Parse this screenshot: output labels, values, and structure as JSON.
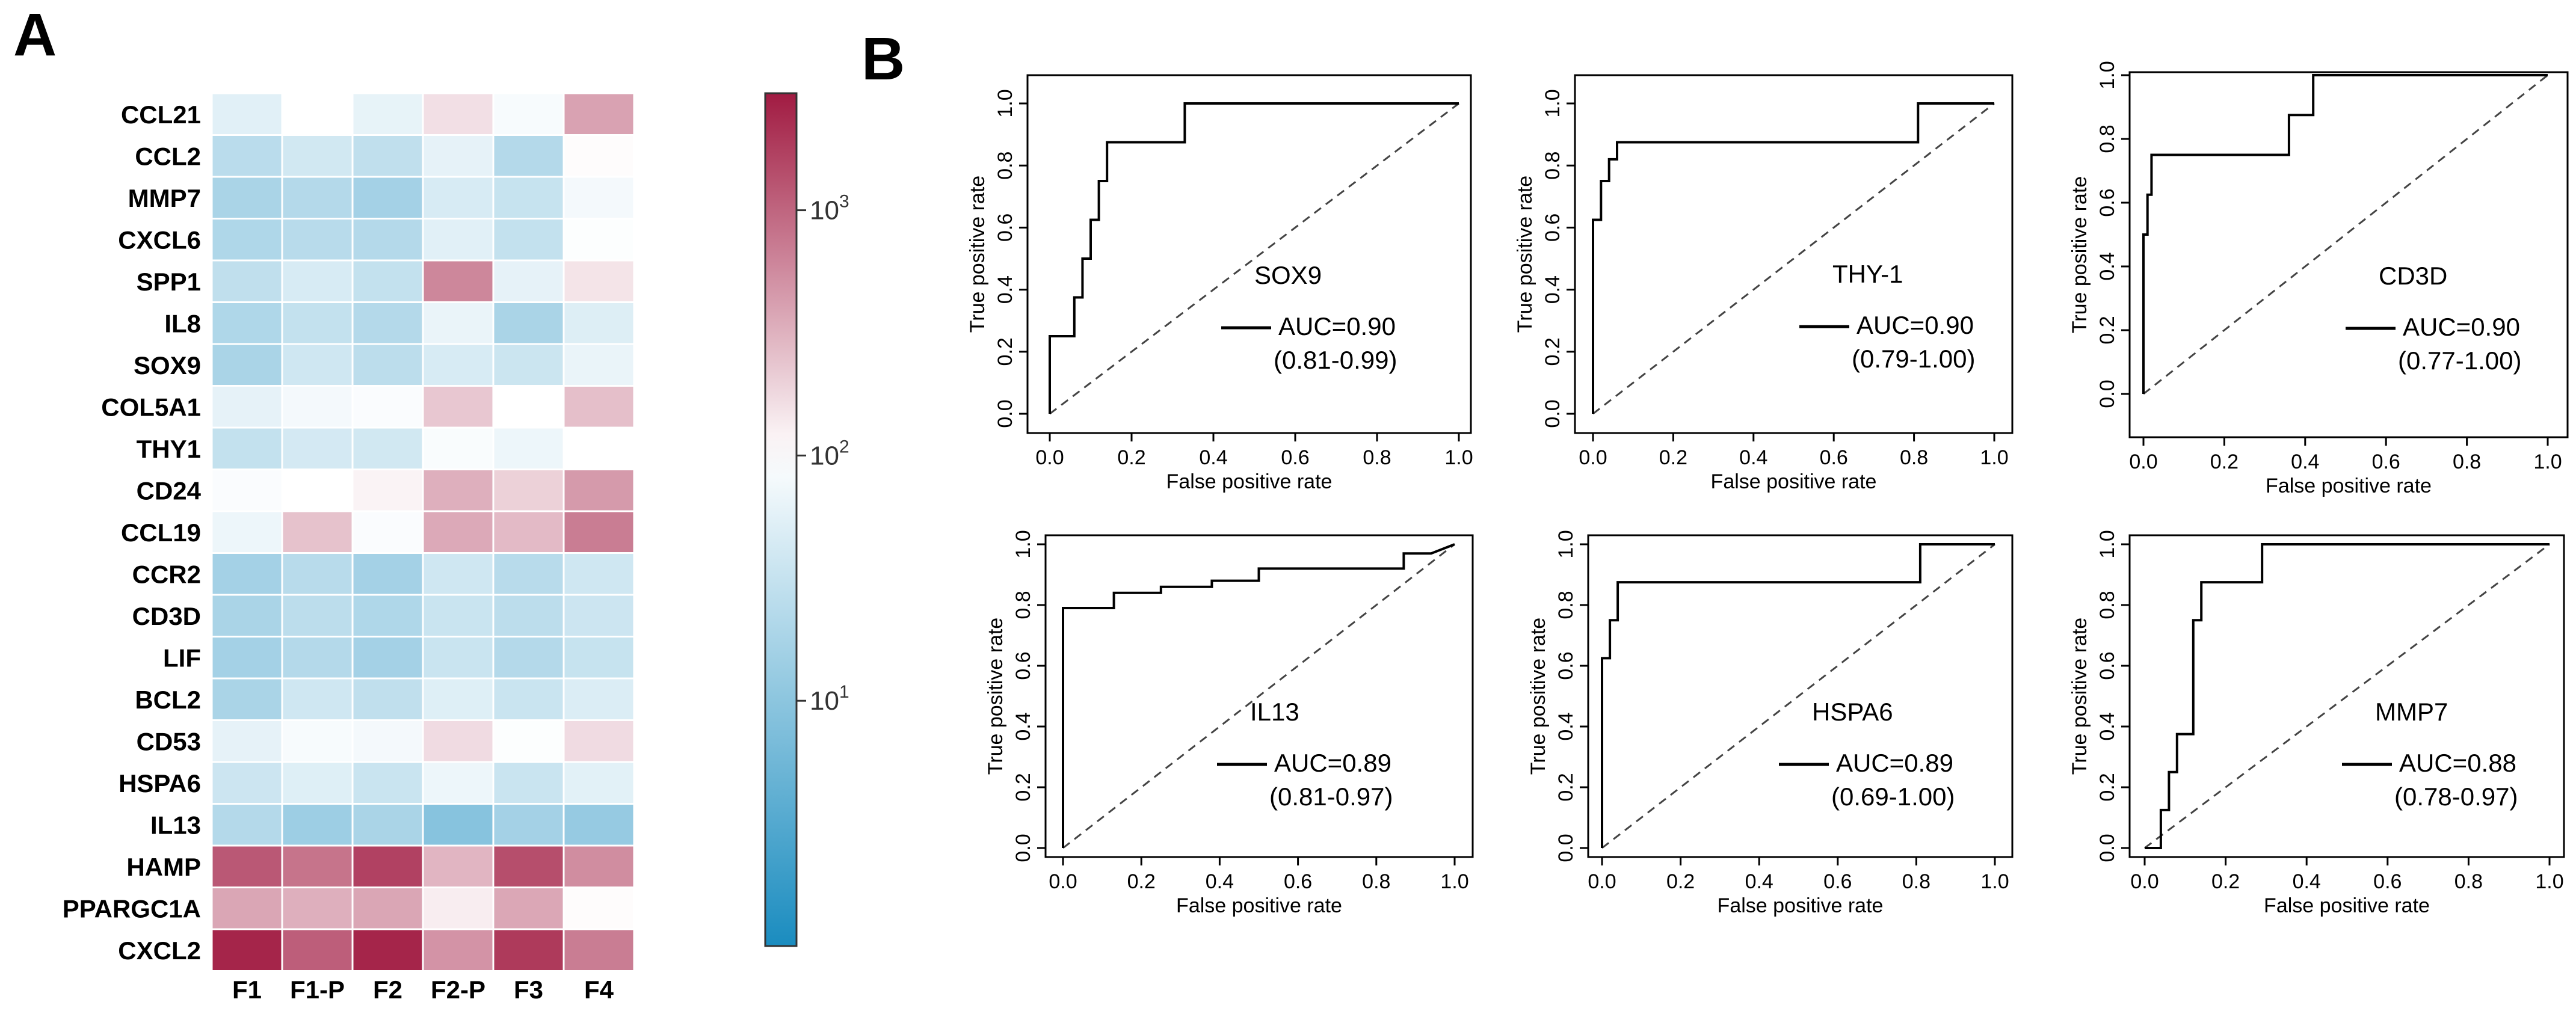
{
  "panels": {
    "a_label": "A",
    "b_label": "B"
  },
  "chart_data": [
    {
      "type": "heatmap",
      "rows": [
        "CCL21",
        "CCL2",
        "MMP7",
        "CXCL6",
        "SPP1",
        "IL8",
        "SOX9",
        "COL5A1",
        "THY1",
        "CD24",
        "CCL19",
        "CCR2",
        "CD3D",
        "LIF",
        "BCL2",
        "CD53",
        "HSPA6",
        "IL13",
        "HAMP",
        "PPARGC1A",
        "CXCL2"
      ],
      "columns": [
        "F1",
        "F1-P",
        "F2",
        "F2-P",
        "F3",
        "F4"
      ],
      "values": [
        [
          55,
          100,
          62,
          160,
          85,
          400
        ],
        [
          25,
          40,
          28,
          60,
          22,
          105
        ],
        [
          18,
          22,
          16,
          45,
          32,
          80
        ],
        [
          20,
          24,
          22,
          55,
          30,
          95
        ],
        [
          28,
          45,
          30,
          600,
          60,
          150
        ],
        [
          20,
          30,
          22,
          65,
          18,
          50
        ],
        [
          18,
          38,
          26,
          45,
          35,
          65
        ],
        [
          60,
          80,
          90,
          230,
          100,
          260
        ],
        [
          30,
          42,
          40,
          88,
          70,
          100
        ],
        [
          90,
          100,
          120,
          330,
          200,
          450
        ],
        [
          70,
          250,
          90,
          360,
          280,
          700
        ],
        [
          16,
          24,
          16,
          38,
          24,
          38
        ],
        [
          18,
          26,
          20,
          34,
          26,
          36
        ],
        [
          16,
          22,
          16,
          34,
          22,
          32
        ],
        [
          18,
          38,
          28,
          52,
          34,
          48
        ],
        [
          60,
          85,
          80,
          170,
          95,
          170
        ],
        [
          36,
          52,
          34,
          70,
          34,
          56
        ],
        [
          22,
          14,
          18,
          9,
          16,
          12
        ],
        [
          1200,
          800,
          1700,
          300,
          1400,
          550
        ],
        [
          380,
          330,
          380,
          130,
          370,
          105
        ],
        [
          2600,
          1100,
          2600,
          500,
          1900,
          700
        ]
      ],
      "scale": "log",
      "colorbar": {
        "min": 1,
        "max": 3000,
        "ticks": [
          {
            "value": 10,
            "label": "10",
            "exp": "1"
          },
          {
            "value": 100,
            "label": "10",
            "exp": "2"
          },
          {
            "value": 1000,
            "label": "10",
            "exp": "3"
          }
        ],
        "colors": {
          "low": "#1a8cbf",
          "mid": "#ffffff",
          "high": "#a11b42"
        }
      }
    },
    {
      "type": "line",
      "title": "SOX9",
      "auc": "AUC=0.90",
      "ci": "(0.81-0.99)",
      "xlabel": "False positive rate",
      "ylabel": "True positive rate",
      "xlim": [
        0,
        1
      ],
      "ylim": [
        0,
        1
      ],
      "ticks": [
        "0.0",
        "0.2",
        "0.4",
        "0.6",
        "0.8",
        "1.0"
      ],
      "fpr": [
        0,
        0,
        0.06,
        0.06,
        0.08,
        0.08,
        0.1,
        0.1,
        0.12,
        0.12,
        0.14,
        0.14,
        0.33,
        0.33,
        1.0
      ],
      "tpr": [
        0,
        0.25,
        0.25,
        0.375,
        0.375,
        0.5,
        0.5,
        0.625,
        0.625,
        0.75,
        0.75,
        0.875,
        0.875,
        1.0,
        1.0
      ]
    },
    {
      "type": "line",
      "title": "THY-1",
      "auc": "AUC=0.90",
      "ci": "(0.79-1.00)",
      "xlabel": "False positive rate",
      "ylabel": "True positive rate",
      "xlim": [
        0,
        1
      ],
      "ylim": [
        0,
        1
      ],
      "ticks": [
        "0.0",
        "0.2",
        "0.4",
        "0.6",
        "0.8",
        "1.0"
      ],
      "fpr": [
        0,
        0,
        0.02,
        0.02,
        0.04,
        0.04,
        0.06,
        0.06,
        0.81,
        0.81,
        1.0
      ],
      "tpr": [
        0,
        0.625,
        0.625,
        0.75,
        0.75,
        0.82,
        0.82,
        0.875,
        0.875,
        1.0,
        1.0
      ]
    },
    {
      "type": "line",
      "title": "CD3D",
      "auc": "AUC=0.90",
      "ci": "(0.77-1.00)",
      "xlabel": "False positive rate",
      "ylabel": "True positive rate",
      "xlim": [
        0,
        1
      ],
      "ylim": [
        0,
        1
      ],
      "ticks": [
        "0.0",
        "0.2",
        "0.4",
        "0.6",
        "0.8",
        "1.0"
      ],
      "fpr": [
        0,
        0,
        0.01,
        0.01,
        0.02,
        0.02,
        0.36,
        0.36,
        0.42,
        0.42,
        1.0
      ],
      "tpr": [
        0,
        0.5,
        0.5,
        0.625,
        0.625,
        0.75,
        0.75,
        0.875,
        0.875,
        1.0,
        1.0
      ]
    },
    {
      "type": "line",
      "title": "IL13",
      "auc": "AUC=0.89",
      "ci": "(0.81-0.97)",
      "xlabel": "False positive rate",
      "ylabel": "True positive rate",
      "xlim": [
        0,
        1
      ],
      "ylim": [
        0,
        1
      ],
      "ticks": [
        "0.0",
        "0.2",
        "0.4",
        "0.6",
        "0.8",
        "1.0"
      ],
      "fpr": [
        0,
        0,
        0.13,
        0.13,
        0.25,
        0.25,
        0.38,
        0.38,
        0.5,
        0.5,
        0.87,
        0.87,
        0.94,
        1.0
      ],
      "tpr": [
        0,
        0.79,
        0.79,
        0.84,
        0.84,
        0.86,
        0.86,
        0.88,
        0.88,
        0.92,
        0.92,
        0.97,
        0.97,
        1.0
      ]
    },
    {
      "type": "line",
      "title": "HSPA6",
      "auc": "AUC=0.89",
      "ci": "(0.69-1.00)",
      "xlabel": "False positive rate",
      "ylabel": "True positive rate",
      "xlim": [
        0,
        1
      ],
      "ylim": [
        0,
        1
      ],
      "ticks": [
        "0.0",
        "0.2",
        "0.4",
        "0.6",
        "0.8",
        "1.0"
      ],
      "fpr": [
        0,
        0,
        0.02,
        0.02,
        0.04,
        0.04,
        0.06,
        0.06,
        0.81,
        0.81,
        1.0
      ],
      "tpr": [
        0,
        0.625,
        0.625,
        0.75,
        0.75,
        0.875,
        0.875,
        0.875,
        0.875,
        1.0,
        1.0
      ]
    },
    {
      "type": "line",
      "title": "MMP7",
      "auc": "AUC=0.88",
      "ci": "(0.78-0.97)",
      "xlabel": "False positive rate",
      "ylabel": "True positive rate",
      "xlim": [
        0,
        1
      ],
      "ylim": [
        0,
        1
      ],
      "ticks": [
        "0.0",
        "0.2",
        "0.4",
        "0.6",
        "0.8",
        "1.0"
      ],
      "fpr": [
        0,
        0.04,
        0.04,
        0.06,
        0.06,
        0.08,
        0.08,
        0.12,
        0.12,
        0.14,
        0.14,
        0.29,
        0.29,
        1.0
      ],
      "tpr": [
        0,
        0,
        0.125,
        0.125,
        0.25,
        0.25,
        0.375,
        0.375,
        0.75,
        0.75,
        0.875,
        0.875,
        1.0,
        1.0
      ]
    }
  ]
}
